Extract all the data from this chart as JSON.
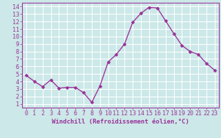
{
  "x": [
    0,
    1,
    2,
    3,
    4,
    5,
    6,
    7,
    8,
    9,
    10,
    11,
    12,
    13,
    14,
    15,
    16,
    17,
    18,
    19,
    20,
    21,
    22,
    23
  ],
  "y": [
    4.8,
    4.0,
    3.3,
    4.2,
    3.1,
    3.2,
    3.2,
    2.5,
    1.2,
    3.4,
    6.6,
    7.6,
    9.0,
    11.9,
    13.1,
    13.9,
    13.8,
    12.1,
    10.4,
    8.8,
    8.0,
    7.6,
    6.4,
    5.5
  ],
  "line_color": "#993399",
  "marker_color": "#993399",
  "bg_color": "#cce8e8",
  "grid_color": "#ffffff",
  "xlabel": "Windchill (Refroidissement éolien,°C)",
  "xlim": [
    -0.5,
    23.5
  ],
  "ylim": [
    0.5,
    14.5
  ],
  "xticks": [
    0,
    1,
    2,
    3,
    4,
    5,
    6,
    7,
    8,
    9,
    10,
    11,
    12,
    13,
    14,
    15,
    16,
    17,
    18,
    19,
    20,
    21,
    22,
    23
  ],
  "yticks": [
    1,
    2,
    3,
    4,
    5,
    6,
    7,
    8,
    9,
    10,
    11,
    12,
    13,
    14
  ],
  "xlabel_fontsize": 6.5,
  "tick_fontsize": 6.0,
  "axis_label_color": "#993399",
  "tick_color": "#993399",
  "spine_color": "#993399",
  "linewidth": 1.0,
  "markersize": 2.5
}
